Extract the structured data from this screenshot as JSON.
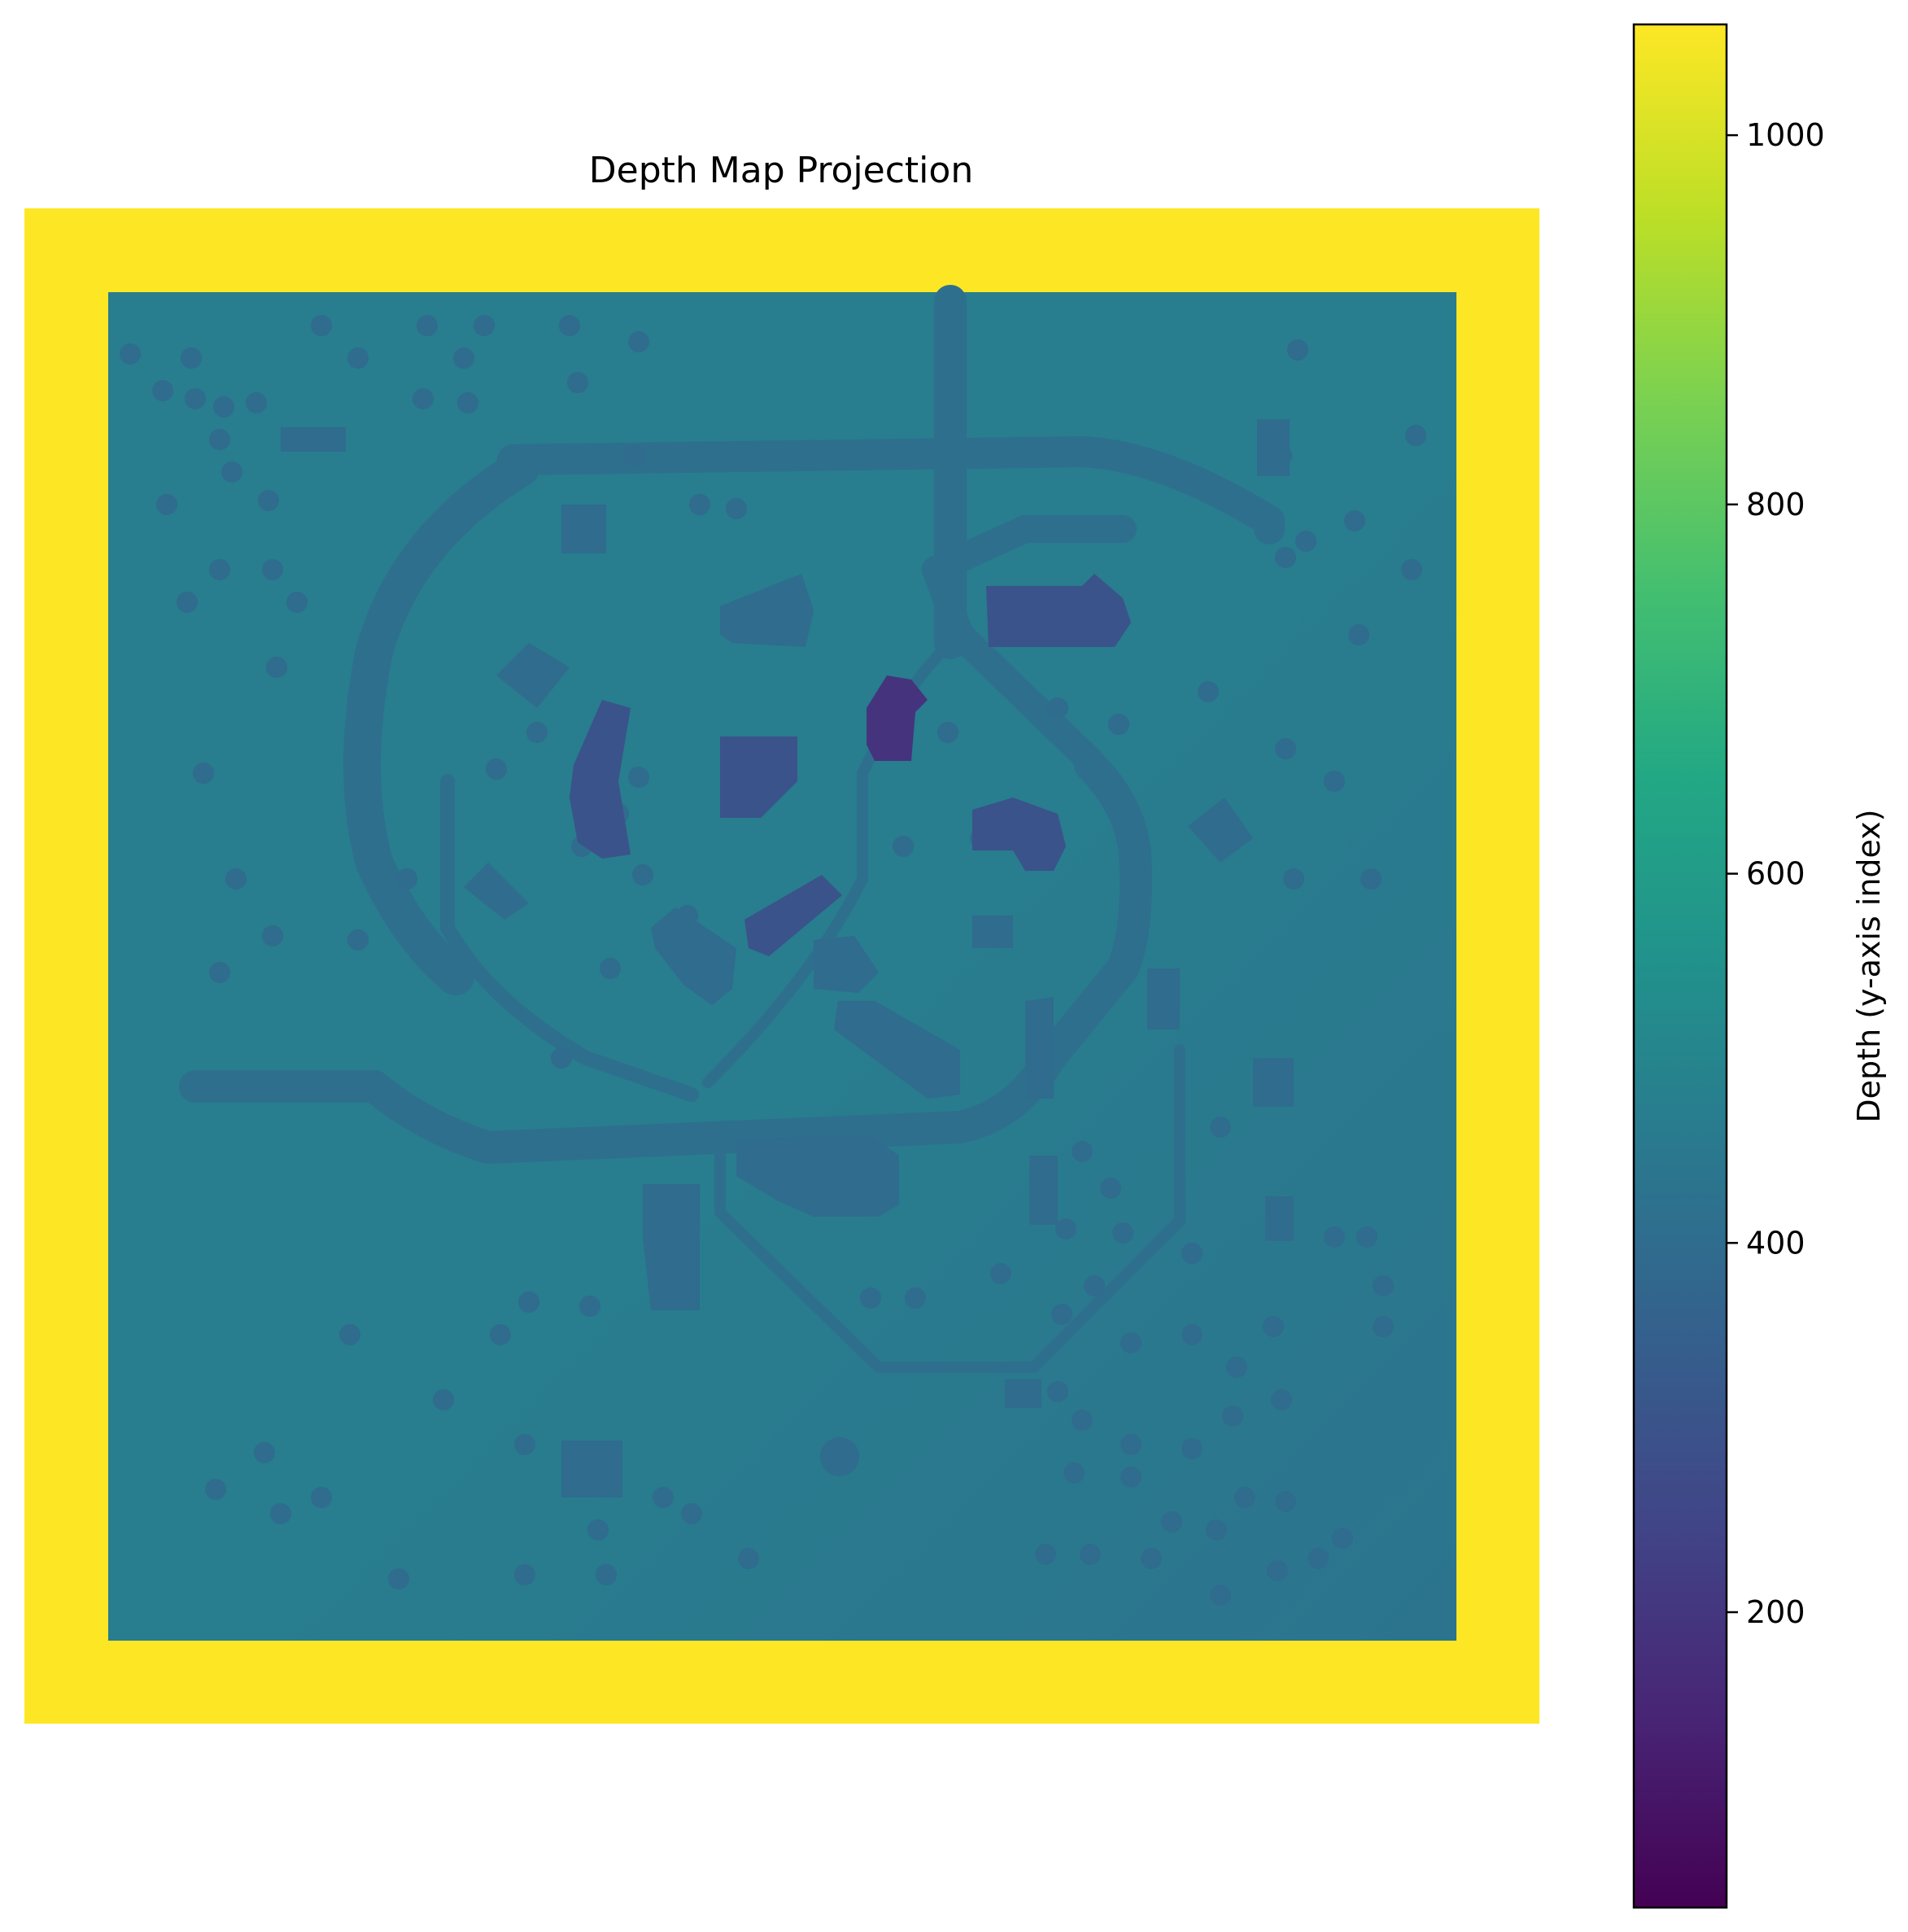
{
  "chart_data": {
    "type": "heatmap",
    "title": "Depth Map Projection",
    "axes_visible": false,
    "colormap": "viridis",
    "colorbar": {
      "label": "Depth (y-axis index)",
      "range": [
        40,
        1060
      ],
      "ticks": [
        200,
        400,
        600,
        800,
        1000
      ],
      "tick_labels": [
        "200",
        "400",
        "600",
        "800",
        "1000"
      ],
      "placement": "right"
    },
    "regions": [
      {
        "name": "outer-frame",
        "depth": 1060
      },
      {
        "name": "ground-plane",
        "depth": 470
      },
      {
        "name": "ground-plane-lower-right",
        "depth": 430
      },
      {
        "name": "roads",
        "depth": 410
      },
      {
        "name": "small-structures",
        "depth": 400
      },
      {
        "name": "central-buildings",
        "depth": 300
      },
      {
        "name": "tallest-building",
        "depth": 190
      }
    ]
  }
}
